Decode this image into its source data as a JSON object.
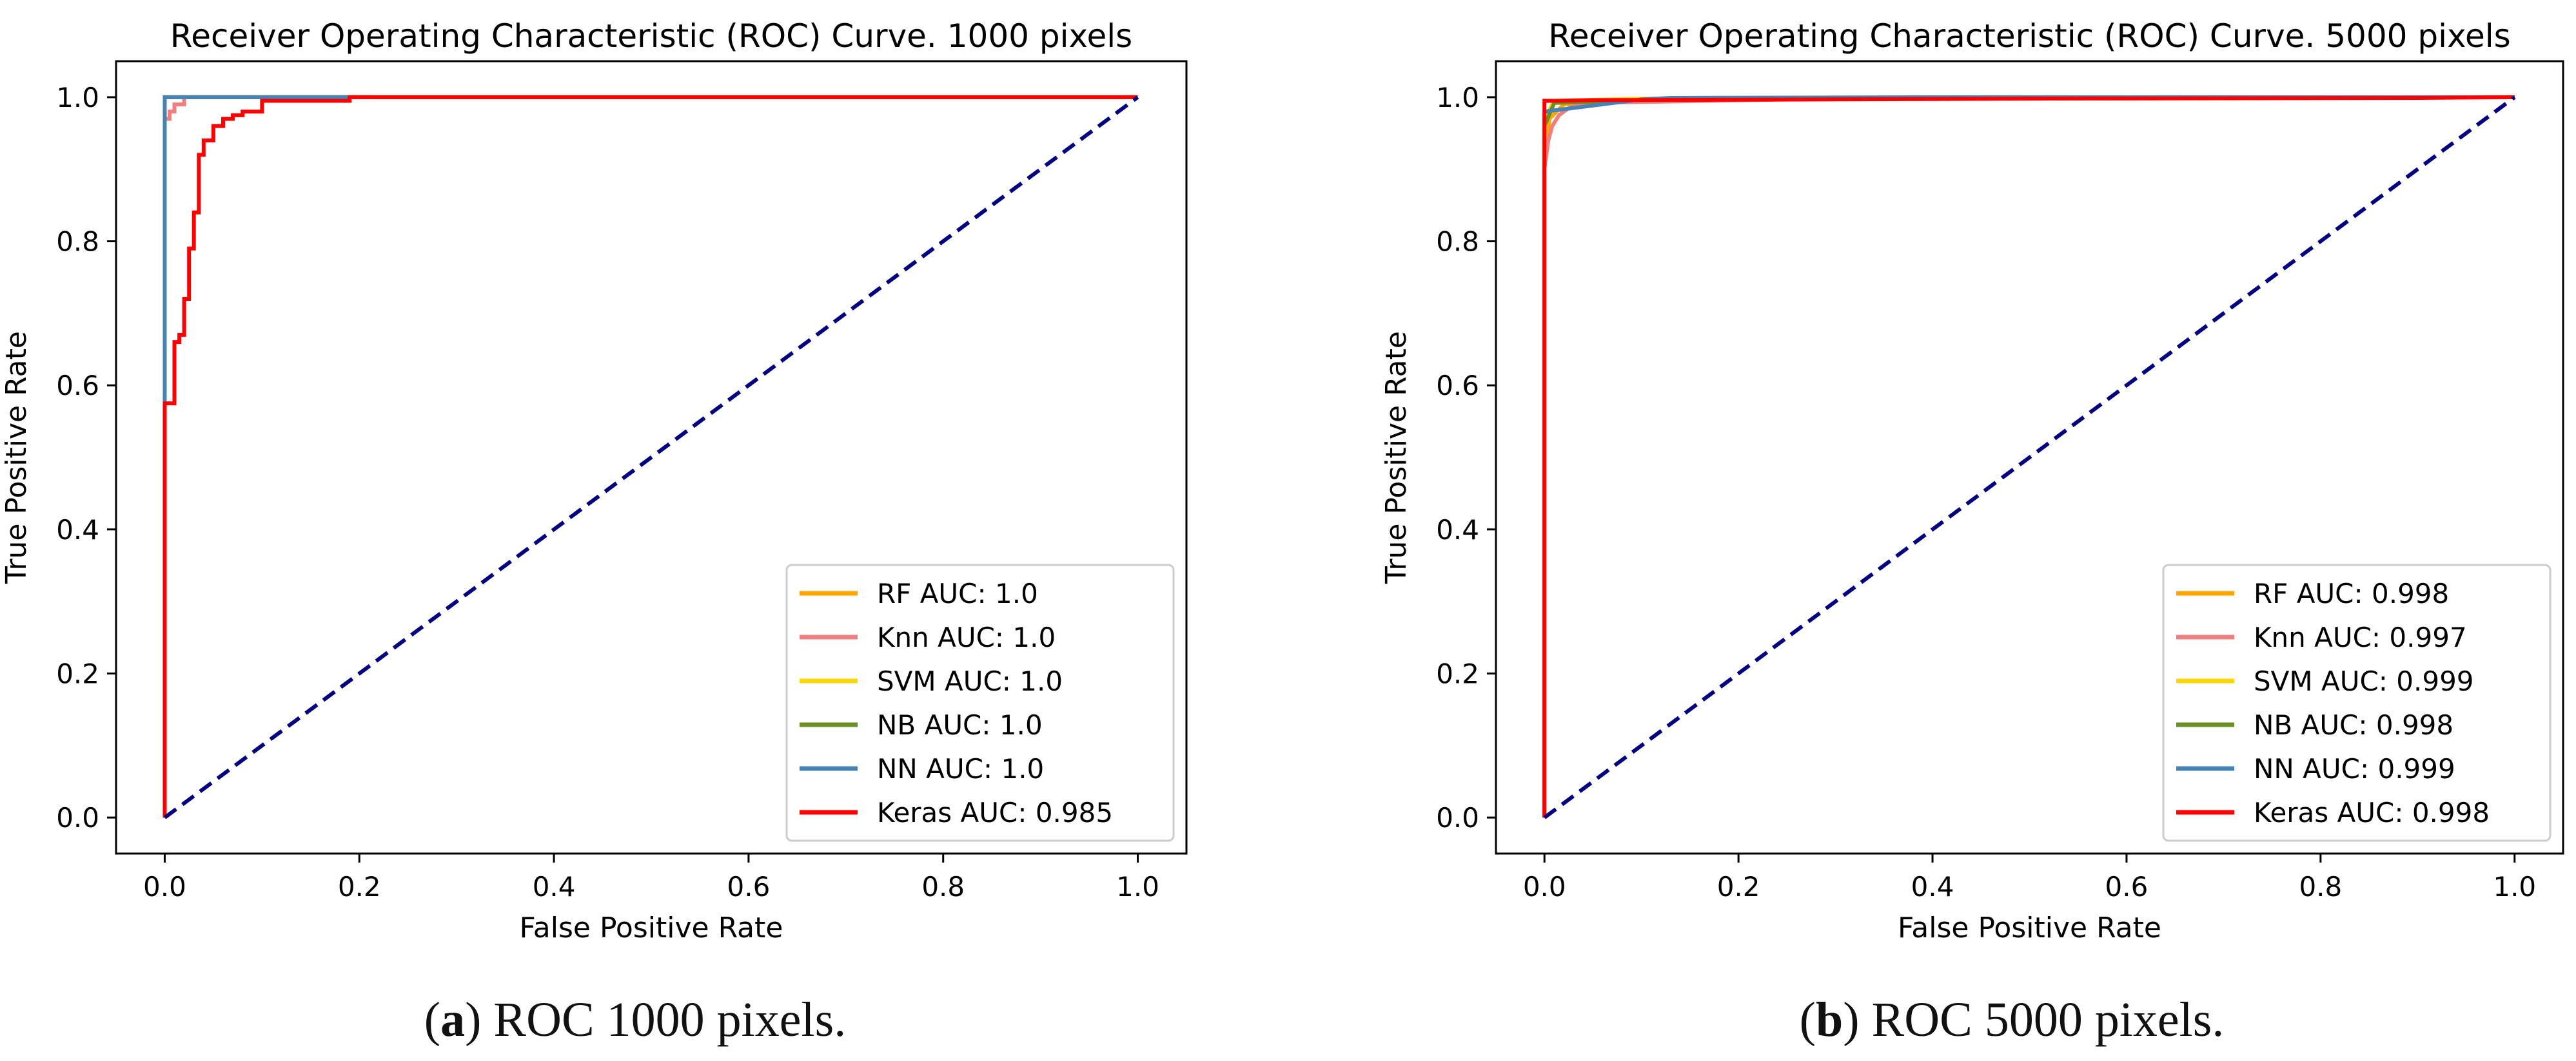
{
  "chart_data": [
    {
      "type": "line",
      "title": "Receiver Operating Characteristic (ROC) Curve. 1000 pixels",
      "xlabel": "False Positive Rate",
      "ylabel": "True Positive Rate",
      "xlim": [
        -0.05,
        1.05
      ],
      "ylim": [
        -0.05,
        1.05
      ],
      "xticks": [
        0.0,
        0.2,
        0.4,
        0.6,
        0.8,
        1.0
      ],
      "yticks": [
        0.0,
        0.2,
        0.4,
        0.6,
        0.8,
        1.0
      ],
      "tick_labels": [
        "0.0",
        "0.2",
        "0.4",
        "0.6",
        "0.8",
        "1.0"
      ],
      "legend_position": "lower-right",
      "series": [
        {
          "name": "RF AUC: 1.0",
          "color": "#ffa500",
          "dash": false,
          "x": [
            0,
            0,
            1
          ],
          "y": [
            0,
            1,
            1
          ]
        },
        {
          "name": "Knn AUC: 1.0",
          "color": "#f08080",
          "dash": false,
          "x": [
            0,
            0,
            0.005,
            0.005,
            0.01,
            0.01,
            0.02,
            0.02,
            1
          ],
          "y": [
            0,
            0.97,
            0.97,
            0.98,
            0.98,
            0.99,
            0.99,
            1,
            1
          ]
        },
        {
          "name": "SVM AUC: 1.0",
          "color": "#ffd700",
          "dash": false,
          "x": [
            0,
            0,
            1
          ],
          "y": [
            0,
            1,
            1
          ]
        },
        {
          "name": "NB AUC: 1.0",
          "color": "#6b8e23",
          "dash": false,
          "x": [
            0,
            0,
            1
          ],
          "y": [
            0,
            1,
            1
          ]
        },
        {
          "name": "NN AUC: 1.0",
          "color": "#4682b4",
          "dash": false,
          "x": [
            0,
            0,
            0.19,
            0.19,
            1
          ],
          "y": [
            0,
            1,
            1,
            1,
            1
          ]
        },
        {
          "name": "Keras AUC: 0.985",
          "color": "#ff0000",
          "dash": false,
          "x": [
            0,
            0,
            0.01,
            0.01,
            0.015,
            0.015,
            0.02,
            0.02,
            0.025,
            0.025,
            0.03,
            0.03,
            0.035,
            0.035,
            0.04,
            0.04,
            0.05,
            0.05,
            0.06,
            0.06,
            0.07,
            0.07,
            0.08,
            0.08,
            0.1,
            0.1,
            0.19,
            0.19,
            1
          ],
          "y": [
            0,
            0.575,
            0.575,
            0.66,
            0.66,
            0.67,
            0.67,
            0.72,
            0.72,
            0.79,
            0.79,
            0.84,
            0.84,
            0.92,
            0.92,
            0.94,
            0.94,
            0.96,
            0.96,
            0.97,
            0.97,
            0.975,
            0.975,
            0.98,
            0.98,
            0.995,
            0.995,
            1,
            1
          ]
        },
        {
          "name": "",
          "color": "#000080",
          "dash": true,
          "x": [
            0,
            1
          ],
          "y": [
            0,
            1
          ]
        }
      ]
    },
    {
      "type": "line",
      "title": "Receiver Operating Characteristic (ROC) Curve. 5000 pixels",
      "xlabel": "False Positive Rate",
      "ylabel": "True Positive Rate",
      "xlim": [
        -0.05,
        1.05
      ],
      "ylim": [
        -0.05,
        1.05
      ],
      "xticks": [
        0.0,
        0.2,
        0.4,
        0.6,
        0.8,
        1.0
      ],
      "yticks": [
        0.0,
        0.2,
        0.4,
        0.6,
        0.8,
        1.0
      ],
      "tick_labels": [
        "0.0",
        "0.2",
        "0.4",
        "0.6",
        "0.8",
        "1.0"
      ],
      "legend_position": "lower-right",
      "series": [
        {
          "name": "RF AUC: 0.998",
          "color": "#ffa500",
          "dash": false,
          "x": [
            0,
            0,
            0.005,
            0.02,
            0.05,
            0.3,
            1
          ],
          "y": [
            0,
            0.9,
            0.97,
            0.99,
            0.995,
            0.998,
            1
          ]
        },
        {
          "name": "Knn AUC: 0.997",
          "color": "#f08080",
          "dash": false,
          "x": [
            0,
            0,
            0.004,
            0.008,
            0.015,
            0.025,
            0.04,
            0.3,
            1
          ],
          "y": [
            0,
            0.9,
            0.94,
            0.96,
            0.975,
            0.985,
            0.992,
            0.998,
            1
          ]
        },
        {
          "name": "SVM AUC: 0.999",
          "color": "#ffd700",
          "dash": false,
          "x": [
            0,
            0,
            0.01,
            0.1,
            1
          ],
          "y": [
            0,
            0.97,
            0.995,
            0.998,
            1
          ]
        },
        {
          "name": "NB AUC: 0.998",
          "color": "#6b8e23",
          "dash": false,
          "x": [
            0,
            0,
            0.01,
            0.1,
            0.35,
            1
          ],
          "y": [
            0,
            0.96,
            0.992,
            0.996,
            0.999,
            1
          ]
        },
        {
          "name": "NN AUC: 0.999",
          "color": "#4682b4",
          "dash": false,
          "x": [
            0,
            0,
            0.1,
            0.13,
            0.4,
            1
          ],
          "y": [
            0,
            0.98,
            0.997,
            0.999,
            1,
            1
          ]
        },
        {
          "name": "Keras AUC: 0.998",
          "color": "#ff0000",
          "dash": false,
          "x": [
            0,
            0,
            0.01,
            0.05,
            0.3,
            0.5,
            0.9,
            1
          ],
          "y": [
            0,
            0.995,
            0.995,
            0.996,
            0.997,
            0.998,
            0.999,
            1
          ]
        },
        {
          "name": "",
          "color": "#000080",
          "dash": true,
          "x": [
            0,
            1
          ],
          "y": [
            0,
            1
          ]
        }
      ]
    }
  ],
  "captions": [
    {
      "label": "a",
      "text": " ROC 1000 pixels."
    },
    {
      "label": "b",
      "text": " ROC 5000 pixels."
    }
  ]
}
